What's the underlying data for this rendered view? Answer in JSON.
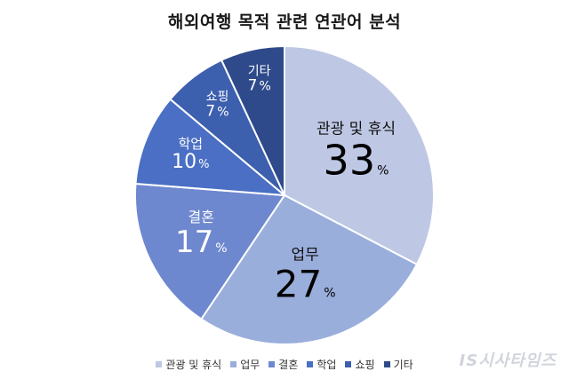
{
  "chart_data": {
    "type": "pie",
    "title": "해외여행 목적 관련 연관어 분석",
    "slices": [
      {
        "label": "관광 및 휴식",
        "value": 33,
        "color": "#bec8e4",
        "text_color": "dark"
      },
      {
        "label": "업무",
        "value": 27,
        "color": "#9aaedc",
        "text_color": "dark"
      },
      {
        "label": "결혼",
        "value": 17,
        "color": "#6e88cf",
        "text_color": "light"
      },
      {
        "label": "학업",
        "value": 10,
        "color": "#4a6fc4",
        "text_color": "light"
      },
      {
        "label": "쇼핑",
        "value": 7,
        "color": "#3c5fae",
        "text_color": "light"
      },
      {
        "label": "기타",
        "value": 7,
        "color": "#2e4a8a",
        "text_color": "light"
      }
    ],
    "unit": "%",
    "legend_position": "bottom"
  },
  "watermark": "IS시사타임즈"
}
